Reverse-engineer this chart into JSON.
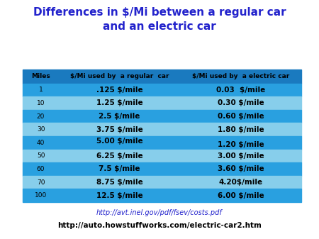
{
  "title": "Differences in $/Mi between a regular car\nand an electric car",
  "title_color": "#2222cc",
  "title_fontsize": 11,
  "col_headers": [
    "Miles",
    "$/Mi used by  a regular  car",
    "$/Mi used by  a electric car"
  ],
  "rows": [
    [
      "1",
      ".125 $/mile",
      "0.03  $/mile"
    ],
    [
      "10",
      "1.25 $/mile",
      "0.30 $/mile"
    ],
    [
      "20",
      "2.5 $/mile",
      "0.60 $/mile"
    ],
    [
      "30",
      "3.75 $/mile",
      "1.80 $/mile"
    ],
    [
      "40",
      "5.00 $/mile",
      "1.20 $/mile"
    ],
    [
      "50",
      "6.25 $/mile",
      "3.00 $/mile"
    ],
    [
      "60",
      "7.5 $/mile",
      "3.60 $/mile"
    ],
    [
      "70",
      "8.75 $/mile",
      "4.20$/mile"
    ],
    [
      "100",
      "12.5 $/mile",
      "6.00 $/mile"
    ]
  ],
  "row40_regular_valign": "top",
  "row40_electric_valign": "bottom",
  "header_bg": "#1a7abf",
  "row_colors_alt": [
    "#29a0e0",
    "#87ceeb"
  ],
  "header_text_color": "#000000",
  "row_text_color": "#000000",
  "url1": "http://avt.inel.gov/pdf/fsev/costs.pdf",
  "url1_color": "#2222cc",
  "url2": "http://auto.howstuffworks.com/electric-car2.htm",
  "url2_color": "#000000",
  "bg_color": "#ffffff",
  "header_fontsize": 6.5,
  "cell_fontsize": 7.5,
  "url_fontsize": 7.0
}
